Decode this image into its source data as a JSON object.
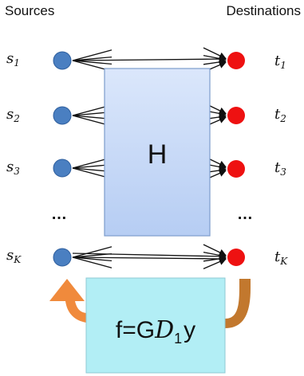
{
  "headers": {
    "sources": "Sources",
    "destinations": "Destinations"
  },
  "sources": [
    {
      "sym": "s",
      "sub": "1"
    },
    {
      "sym": "s",
      "sub": "2"
    },
    {
      "sym": "s",
      "sub": "3"
    },
    {
      "sym": "s",
      "sub": "K"
    }
  ],
  "destinations": [
    {
      "sym": "t",
      "sub": "1"
    },
    {
      "sym": "t",
      "sub": "2"
    },
    {
      "sym": "t",
      "sub": "3"
    },
    {
      "sym": "t",
      "sub": "K"
    }
  ],
  "ellipsis": "…",
  "channel": {
    "label": "H"
  },
  "feedback": {
    "prefix": "f=G",
    "symbol": "D",
    "sub": "1",
    "suffix": "y"
  },
  "colors": {
    "source_node": "#4a7fc1",
    "destination_node": "#ee1111",
    "box_fill": "#c5d8f7",
    "box_stroke": "#7d9ccc",
    "feedback_fill": "#b2eef5",
    "left_arrow": "#f08a3c",
    "right_arrow": "#c2782e"
  }
}
